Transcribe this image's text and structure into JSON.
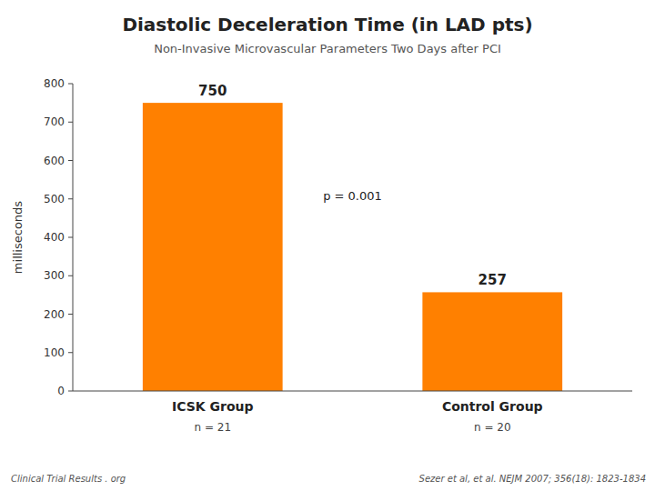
{
  "chart_data": {
    "type": "bar",
    "title": "Diastolic Deceleration Time (in LAD pts)",
    "subtitle": "Non-Invasive Microvascular Parameters Two Days after PCI",
    "categories": [
      "ICSK Group",
      "Control Group"
    ],
    "values": [
      750,
      257
    ],
    "color": "#FF8000",
    "ylabel": "milliseconds",
    "ylim": [
      0,
      800
    ],
    "yticks": [
      0,
      100,
      200,
      300,
      400,
      500,
      600,
      700,
      800
    ],
    "data_labels": true,
    "grid": false,
    "annotations": [
      "p = 0.001"
    ],
    "n_labels": [
      "n = 21",
      "n = 20"
    ],
    "footer": "Clinical Trial Results . org",
    "source": "Sezer et al, et al. NEJM 2007; 356(18): 1823-1834"
  }
}
